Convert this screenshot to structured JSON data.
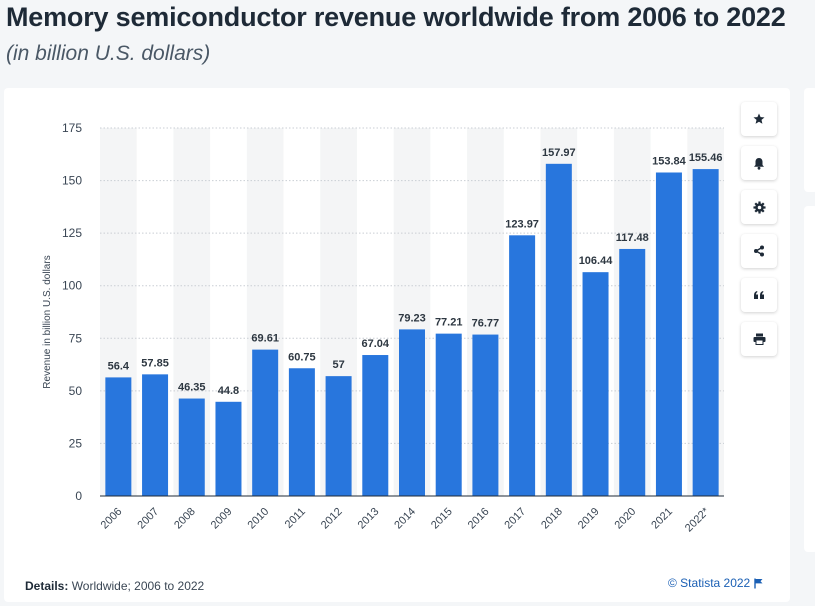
{
  "header": {
    "title": "Memory semiconductor revenue worldwide from 2006 to 2022",
    "subtitle": "(in billion U.S. dollars)"
  },
  "toolbar": {
    "buttons": [
      {
        "icon": "star-icon",
        "label": "Favorite"
      },
      {
        "icon": "bell-icon",
        "label": "Notification"
      },
      {
        "icon": "gear-icon",
        "label": "Settings"
      },
      {
        "icon": "share-icon",
        "label": "Share"
      },
      {
        "icon": "quote-icon",
        "label": "Cite"
      },
      {
        "icon": "print-icon",
        "label": "Print"
      }
    ]
  },
  "footer": {
    "details_label": "Details:",
    "details_text": " Worldwide; 2006 to 2022",
    "credit": "© Statista 2022"
  },
  "colors": {
    "bar": "#2876dd",
    "band": "#f4f5f6",
    "text": "#1e2a37",
    "accent": "#1a5fb4"
  },
  "chart_data": {
    "type": "bar",
    "title": "Memory semiconductor revenue worldwide from 2006 to 2022",
    "subtitle": "(in billion U.S. dollars)",
    "xlabel": "",
    "ylabel": "Revenue in billion U.S. dollars",
    "categories": [
      "2006",
      "2007",
      "2008",
      "2009",
      "2010",
      "2011",
      "2012",
      "2013",
      "2014",
      "2015",
      "2016",
      "2017",
      "2018",
      "2019",
      "2020",
      "2021",
      "2022*"
    ],
    "values": [
      56.4,
      57.85,
      46.35,
      44.8,
      69.61,
      60.75,
      57,
      67.04,
      79.23,
      77.21,
      76.77,
      123.97,
      157.97,
      106.44,
      117.48,
      153.84,
      155.46
    ],
    "value_labels": [
      "56.4",
      "57.85",
      "46.35",
      "44.8",
      "69.61",
      "60.75",
      "57",
      "67.04",
      "79.23",
      "77.21",
      "76.77",
      "123.97",
      "157.97",
      "106.44",
      "117.48",
      "153.84",
      "155.46"
    ],
    "ylim": [
      0,
      175
    ],
    "yticks": [
      0,
      25,
      50,
      75,
      100,
      125,
      150,
      175
    ],
    "grid": true,
    "legend": "none"
  }
}
